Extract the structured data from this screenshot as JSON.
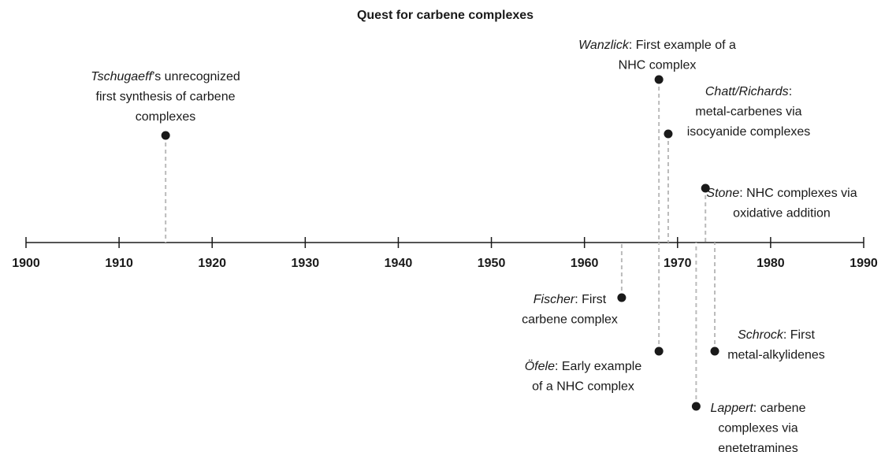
{
  "chart_data": {
    "type": "timeline",
    "title": "Quest for carbene complexes",
    "xlim": [
      1900,
      1990
    ],
    "xticks": [
      1900,
      1910,
      1920,
      1930,
      1940,
      1950,
      1960,
      1970,
      1980,
      1990
    ],
    "events": [
      {
        "name": "Tschugaeff",
        "lines": [
          "’s unrecognized",
          "first synthesis of carbene",
          "complexes"
        ],
        "x": 1915
      },
      {
        "name": "Wanzlick",
        "lines": [
          ": First example of a",
          "NHC complex"
        ],
        "x": 1968
      },
      {
        "name": "Chatt/Richards",
        "lines": [
          ":",
          "metal-carbenes via",
          "isocyanide complexes"
        ],
        "x": 1969
      },
      {
        "name": "Stone",
        "lines": [
          ": NHC complexes via",
          "oxidative addition"
        ],
        "x": 1973
      },
      {
        "name": "Fischer",
        "lines": [
          ": First",
          "carbene complex"
        ],
        "x": 1964
      },
      {
        "name": "Öfele",
        "lines": [
          ": Early example",
          "of a NHC complex"
        ],
        "x": 1968
      },
      {
        "name": "Schrock",
        "lines": [
          ": First",
          "metal-alkylidenes"
        ],
        "x": 1974
      },
      {
        "name": "Lappert",
        "lines": [
          ": carbene",
          "complexes via",
          "enetetramines"
        ],
        "x": 1972
      }
    ]
  }
}
